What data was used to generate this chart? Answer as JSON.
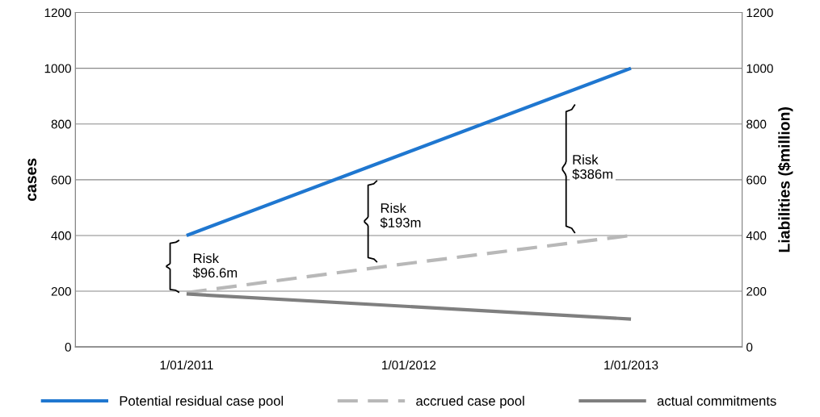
{
  "chart_data": {
    "type": "line",
    "ylabel": "cases",
    "y2label": "Liabilities ($million)",
    "categories": [
      "1/01/2011",
      "1/01/2012",
      "1/01/2013"
    ],
    "series": [
      {
        "name": "Potential residual case pool",
        "color": "#1f77d0",
        "values": [
          400,
          700,
          1000
        ],
        "line_style": "solid"
      },
      {
        "name": "accrued case pool",
        "color": "#b8b8b8",
        "values": [
          195,
          300,
          400
        ],
        "line_style": "dashed"
      },
      {
        "name": "actual commitments",
        "color": "#7f7f7f",
        "values": [
          190,
          145,
          100
        ],
        "line_style": "solid"
      }
    ],
    "ylim": [
      0,
      1200
    ],
    "yticks": [
      0,
      200,
      400,
      600,
      800,
      1000,
      1200
    ],
    "y2lim": [
      0,
      1200
    ],
    "y2ticks": [
      0,
      200,
      400,
      600,
      800,
      1000,
      1200
    ],
    "grid": "y",
    "legend": "bottom",
    "marker": "none",
    "annotations": [
      "Risk\n$96.6m",
      "Risk\n$193m",
      "Risk\n$386m"
    ]
  }
}
